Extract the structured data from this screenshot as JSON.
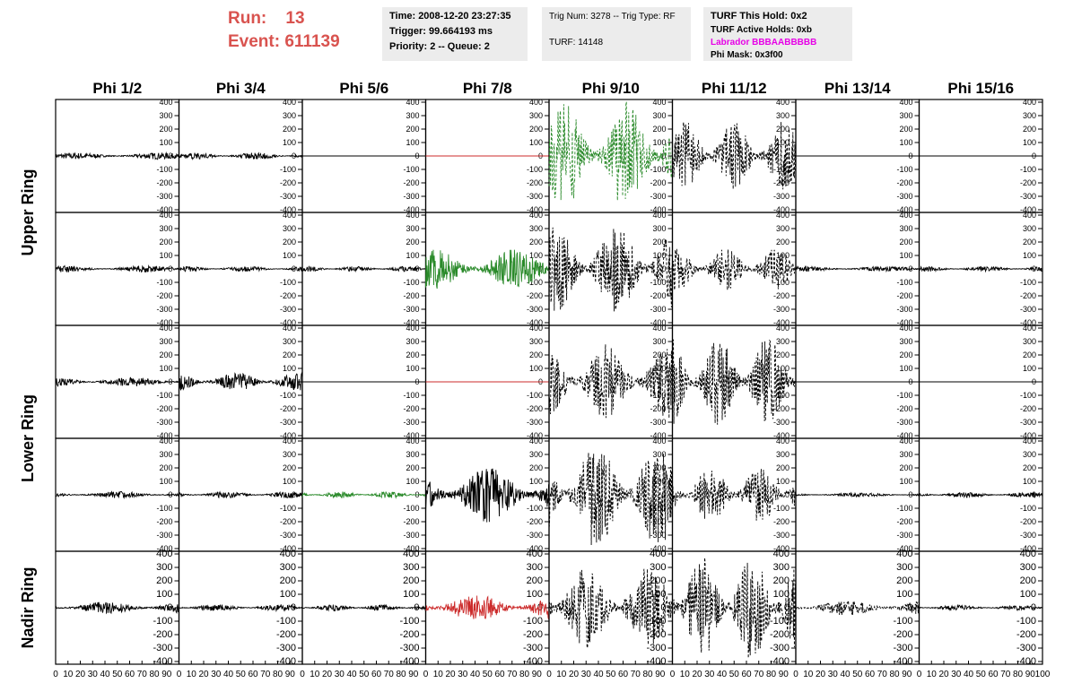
{
  "header": {
    "run_label": "Run:",
    "run_value": "13",
    "event_label": "Event:",
    "event_value": "611139"
  },
  "info_panel_1": {
    "time": "Time: 2008-12-20 23:27:35",
    "trigger": "Trigger: 99.664193 ms",
    "priority": "Priority: 2 -- Queue: 2"
  },
  "info_panel_2": {
    "trig": "Trig Num: 3278 -- Trig Type: RF",
    "turf": "TURF: 14148"
  },
  "info_panel_3": {
    "this_hold": "TURF This Hold: 0x2",
    "active_holds": "TURF Active Holds: 0xb",
    "labrador": "Labrador BBBAABBBBB",
    "phi_mask": "Phi Mask: 0x3f00"
  },
  "chart_data": {
    "type": "line",
    "title": "",
    "columns": [
      "Phi 1/2",
      "Phi 3/4",
      "Phi 5/6",
      "Phi 7/8",
      "Phi 9/10",
      "Phi 11/12",
      "Phi 13/14",
      "Phi 15/16"
    ],
    "ring_labels": [
      "Upper Ring",
      "Lower Ring",
      "Nadir Ring"
    ],
    "y_ticks": [
      400,
      300,
      200,
      100,
      0,
      -100,
      -200,
      -300,
      -400
    ],
    "ylim": [
      -420,
      420
    ],
    "xlim": [
      0,
      100
    ],
    "x_ticks": [
      0,
      10,
      20,
      30,
      40,
      50,
      60,
      70,
      80,
      90,
      100
    ],
    "x_tick_labels": [
      "0",
      "10",
      "20",
      "30",
      "40",
      "50",
      "60",
      "70",
      "80",
      "90",
      "100"
    ],
    "grid": false,
    "colors": {
      "black": "#000000",
      "green": "#2a8a2a",
      "red": "#cc2b2b",
      "label": "#d9534f",
      "magenta": "#e600e6"
    },
    "rows": [
      [
        {
          "style": "solid",
          "color": "black",
          "amp": 25
        },
        {
          "style": "solid",
          "color": "black",
          "amp": 25
        },
        {
          "style": "flat",
          "color": "black",
          "amp": 0
        },
        {
          "style": "flat",
          "color": "red",
          "amp": 0
        },
        {
          "style": "dashed",
          "color": "green",
          "amp": 410
        },
        {
          "style": "dashed",
          "color": "black",
          "amp": 260
        },
        {
          "style": "flat",
          "color": "black",
          "amp": 0
        },
        {
          "style": "flat",
          "color": "black",
          "amp": 0
        }
      ],
      [
        {
          "style": "solid",
          "color": "black",
          "amp": 25
        },
        {
          "style": "solid",
          "color": "black",
          "amp": 20
        },
        {
          "style": "solid",
          "color": "black",
          "amp": 20
        },
        {
          "style": "solid",
          "color": "green",
          "amp": 150
        },
        {
          "style": "dashed",
          "color": "black",
          "amp": 330
        },
        {
          "style": "dashed",
          "color": "black",
          "amp": 160
        },
        {
          "style": "solid",
          "color": "black",
          "amp": 20
        },
        {
          "style": "solid",
          "color": "black",
          "amp": 20
        }
      ],
      [
        {
          "style": "solid",
          "color": "black",
          "amp": 35
        },
        {
          "style": "solid",
          "color": "black",
          "amp": 70
        },
        {
          "style": "flat",
          "color": "black",
          "amp": 0
        },
        {
          "style": "flat",
          "color": "red",
          "amp": 0
        },
        {
          "style": "dashed",
          "color": "black",
          "amp": 280
        },
        {
          "style": "dashed",
          "color": "black",
          "amp": 340
        },
        {
          "style": "flat",
          "color": "black",
          "amp": 0
        },
        {
          "style": "flat",
          "color": "black",
          "amp": 0
        }
      ],
      [
        {
          "style": "solid",
          "color": "black",
          "amp": 25
        },
        {
          "style": "solid",
          "color": "black",
          "amp": 25
        },
        {
          "style": "solid",
          "color": "green",
          "amp": 25
        },
        {
          "style": "solid",
          "color": "black",
          "amp": 210
        },
        {
          "style": "dashed",
          "color": "black",
          "amp": 400
        },
        {
          "style": "dashed",
          "color": "black",
          "amp": 220
        },
        {
          "style": "solid",
          "color": "black",
          "amp": 15
        },
        {
          "style": "solid",
          "color": "black",
          "amp": 20
        }
      ],
      [
        {
          "style": "solid",
          "color": "black",
          "amp": 45
        },
        {
          "style": "solid",
          "color": "black",
          "amp": 25
        },
        {
          "style": "solid",
          "color": "black",
          "amp": 25
        },
        {
          "style": "solid",
          "color": "red",
          "amp": 100
        },
        {
          "style": "dashed",
          "color": "black",
          "amp": 320
        },
        {
          "style": "dashed",
          "color": "black",
          "amp": 400
        },
        {
          "style": "dashed",
          "color": "black",
          "amp": 60
        },
        {
          "style": "solid",
          "color": "black",
          "amp": 20
        }
      ]
    ]
  }
}
